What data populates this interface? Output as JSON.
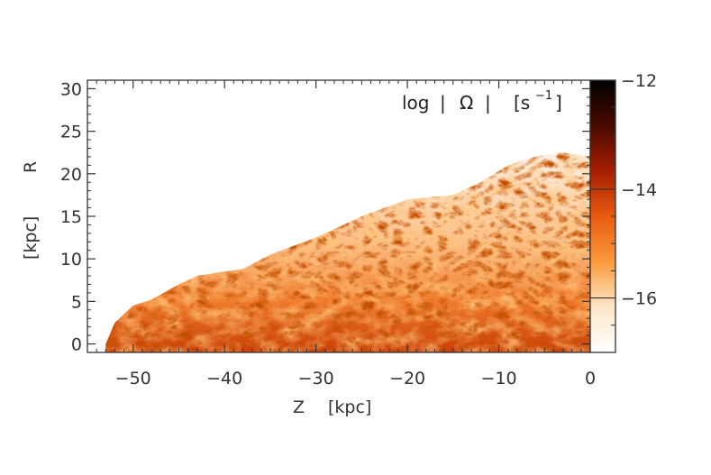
{
  "chart_data": {
    "type": "heatmap",
    "title": "",
    "annotation": {
      "prefix": "log",
      "bar": "|",
      "symbol": "Ω",
      "unit_open": "[s",
      "unit_exp": "−1",
      "unit_close": "]"
    },
    "xlabel": {
      "name": "Z",
      "unit": "[kpc]"
    },
    "ylabel": {
      "name": "R",
      "unit": "[kpc]"
    },
    "xlim": [
      -55,
      0
    ],
    "ylim": [
      -1,
      31
    ],
    "x_ticks": [
      -50,
      -40,
      -30,
      -20,
      -10,
      0
    ],
    "x_tick_labels": [
      "−50",
      "−40",
      "−30",
      "−20",
      "−10",
      "0"
    ],
    "y_ticks": [
      0,
      5,
      10,
      15,
      20,
      25,
      30
    ],
    "y_tick_labels": [
      "0",
      "5",
      "10",
      "15",
      "20",
      "25",
      "30"
    ],
    "colorbar": {
      "range": [
        -17,
        -12
      ],
      "ticks": [
        -12,
        -14,
        -16
      ],
      "tick_labels": [
        "−12",
        "−14",
        "−16"
      ],
      "colormap": [
        "#ffffff",
        "#fde6c8",
        "#fb9a3e",
        "#e85b10",
        "#a51e00",
        "#4a0a00",
        "#000000"
      ]
    },
    "field_envelope": [
      {
        "z": -53,
        "r": 0
      },
      {
        "z": -52,
        "r": 2.5
      },
      {
        "z": -50,
        "r": 4.5
      },
      {
        "z": -48,
        "r": 5.2
      },
      {
        "z": -45,
        "r": 7.0
      },
      {
        "z": -43,
        "r": 8.0
      },
      {
        "z": -40,
        "r": 8.5
      },
      {
        "z": -38,
        "r": 8.8
      },
      {
        "z": -35,
        "r": 10.5
      },
      {
        "z": -30,
        "r": 12.5
      },
      {
        "z": -25,
        "r": 15.0
      },
      {
        "z": -20,
        "r": 17.0
      },
      {
        "z": -15,
        "r": 17.5
      },
      {
        "z": -12,
        "r": 19.0
      },
      {
        "z": -9,
        "r": 21.0
      },
      {
        "z": -6,
        "r": 22.0
      },
      {
        "z": -3,
        "r": 22.5
      },
      {
        "z": 0,
        "r": 22.0
      }
    ]
  }
}
